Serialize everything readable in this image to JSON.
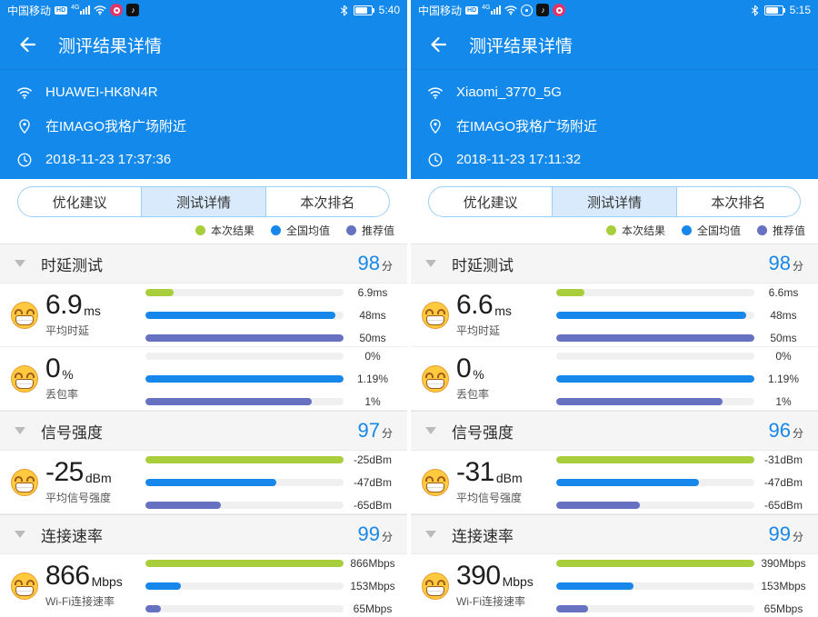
{
  "colors": {
    "header_blue": "#1489EC",
    "score_blue": "#1787E8",
    "bar_green": "#A8CE3B",
    "bar_blue": "#1787EC",
    "bar_purple": "#6671C1",
    "bar_track": "#F0F0F0",
    "tab_active_bg": "#D8EAFB",
    "tab_border": "#9CCFF4"
  },
  "panels": [
    {
      "status": {
        "carrier": "中国移动",
        "hd": "HD",
        "network": "4G",
        "time": "5:40"
      },
      "header": {
        "title": "测评结果详情"
      },
      "info": {
        "ssid": "HUAWEI-HK8N4R",
        "location": "在IMAGO我格广场附近",
        "datetime": "2018-11-23 17:37:36"
      },
      "tabs": [
        "优化建议",
        "测试详情",
        "本次排名"
      ],
      "legend": [
        {
          "label": "本次结果",
          "color": "#A8CE3B"
        },
        {
          "label": "全国均值",
          "color": "#1787EC"
        },
        {
          "label": "推荐值",
          "color": "#6671C1"
        }
      ],
      "sections": [
        {
          "title": "时延测试",
          "score": "98",
          "score_unit": "分",
          "rows": [
            {
              "value": "6.9",
              "unit": "ms",
              "label": "平均时延",
              "bars": [
                {
                  "pct": 14,
                  "color": "#A8CE3B",
                  "text": "6.9ms"
                },
                {
                  "pct": 96,
                  "color": "#1787EC",
                  "text": "48ms"
                },
                {
                  "pct": 100,
                  "color": "#6671C1",
                  "text": "50ms"
                }
              ]
            },
            {
              "value": "0",
              "unit": "%",
              "label": "丢包率",
              "bars": [
                {
                  "pct": 0,
                  "color": "#A8CE3B",
                  "text": "0%"
                },
                {
                  "pct": 100,
                  "color": "#1787EC",
                  "text": "1.19%"
                },
                {
                  "pct": 84,
                  "color": "#6671C1",
                  "text": "1%"
                }
              ]
            }
          ]
        },
        {
          "title": "信号强度",
          "score": "97",
          "score_unit": "分",
          "rows": [
            {
              "value": "-25",
              "unit": "dBm",
              "label": "平均信号强度",
              "bars": [
                {
                  "pct": 100,
                  "color": "#A8CE3B",
                  "text": "-25dBm"
                },
                {
                  "pct": 66,
                  "color": "#1787EC",
                  "text": "-47dBm"
                },
                {
                  "pct": 38,
                  "color": "#6671C1",
                  "text": "-65dBm"
                }
              ]
            }
          ]
        },
        {
          "title": "连接速率",
          "score": "99",
          "score_unit": "分",
          "rows": [
            {
              "value": "866",
              "unit": "Mbps",
              "label": "Wi-Fi连接速率",
              "bars": [
                {
                  "pct": 100,
                  "color": "#A8CE3B",
                  "text": "866Mbps"
                },
                {
                  "pct": 18,
                  "color": "#1787EC",
                  "text": "153Mbps"
                },
                {
                  "pct": 8,
                  "color": "#6671C1",
                  "text": "65Mbps"
                }
              ]
            }
          ]
        }
      ]
    },
    {
      "status": {
        "carrier": "中国移动",
        "hd": "HD",
        "network": "4G",
        "time": "5:15"
      },
      "header": {
        "title": "测评结果详情"
      },
      "info": {
        "ssid": "Xiaomi_3770_5G",
        "location": "在IMAGO我格广场附近",
        "datetime": "2018-11-23 17:11:32"
      },
      "tabs": [
        "优化建议",
        "测试详情",
        "本次排名"
      ],
      "legend": [
        {
          "label": "本次结果",
          "color": "#A8CE3B"
        },
        {
          "label": "全国均值",
          "color": "#1787EC"
        },
        {
          "label": "推荐值",
          "color": "#6671C1"
        }
      ],
      "sections": [
        {
          "title": "时延测试",
          "score": "98",
          "score_unit": "分",
          "rows": [
            {
              "value": "6.6",
              "unit": "ms",
              "label": "平均时延",
              "bars": [
                {
                  "pct": 14,
                  "color": "#A8CE3B",
                  "text": "6.6ms"
                },
                {
                  "pct": 96,
                  "color": "#1787EC",
                  "text": "48ms"
                },
                {
                  "pct": 100,
                  "color": "#6671C1",
                  "text": "50ms"
                }
              ]
            },
            {
              "value": "0",
              "unit": "%",
              "label": "丢包率",
              "bars": [
                {
                  "pct": 0,
                  "color": "#A8CE3B",
                  "text": "0%"
                },
                {
                  "pct": 100,
                  "color": "#1787EC",
                  "text": "1.19%"
                },
                {
                  "pct": 84,
                  "color": "#6671C1",
                  "text": "1%"
                }
              ]
            }
          ]
        },
        {
          "title": "信号强度",
          "score": "96",
          "score_unit": "分",
          "rows": [
            {
              "value": "-31",
              "unit": "dBm",
              "label": "平均信号强度",
              "bars": [
                {
                  "pct": 100,
                  "color": "#A8CE3B",
                  "text": "-31dBm"
                },
                {
                  "pct": 72,
                  "color": "#1787EC",
                  "text": "-47dBm"
                },
                {
                  "pct": 42,
                  "color": "#6671C1",
                  "text": "-65dBm"
                }
              ]
            }
          ]
        },
        {
          "title": "连接速率",
          "score": "99",
          "score_unit": "分",
          "rows": [
            {
              "value": "390",
              "unit": "Mbps",
              "label": "Wi-Fi连接速率",
              "bars": [
                {
                  "pct": 100,
                  "color": "#A8CE3B",
                  "text": "390Mbps"
                },
                {
                  "pct": 39,
                  "color": "#1787EC",
                  "text": "153Mbps"
                },
                {
                  "pct": 16,
                  "color": "#6671C1",
                  "text": "65Mbps"
                }
              ]
            }
          ]
        }
      ]
    }
  ]
}
